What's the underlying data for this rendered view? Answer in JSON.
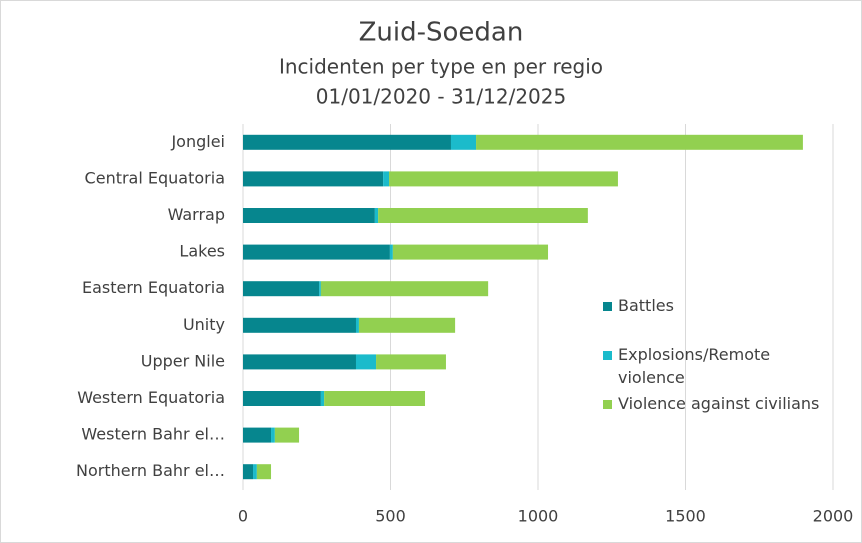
{
  "chart_data": {
    "type": "stacked_bar_horizontal",
    "title": "Zuid-Soedan",
    "subtitle": "Incidenten per type en per regio",
    "date_range": "01/01/2020 - 31/12/2025",
    "categories": [
      "Jonglei",
      "Central Equatoria",
      "Warrap",
      "Lakes",
      "Eastern Equatoria",
      "Unity",
      "Upper Nile",
      "Western Equatoria",
      "Western Bahr el…",
      "Northern Bahr el…"
    ],
    "series": [
      {
        "name": "Battles",
        "color": "#06868e",
        "values": [
          705,
          475,
          447,
          498,
          258,
          383,
          383,
          264,
          95,
          34
        ]
      },
      {
        "name": "Explosions/Remote violence",
        "color": "#1bbbcb",
        "values": [
          85,
          20,
          11,
          10,
          6,
          10,
          68,
          11,
          13,
          13
        ]
      },
      {
        "name": "Violence against civilians",
        "color": "#92d050",
        "values": [
          1108,
          776,
          711,
          526,
          567,
          326,
          237,
          342,
          82,
          48
        ]
      }
    ],
    "xlim": [
      0,
      2000
    ],
    "xticks": [
      0,
      500,
      1000,
      1500,
      2000
    ],
    "grid": true
  }
}
